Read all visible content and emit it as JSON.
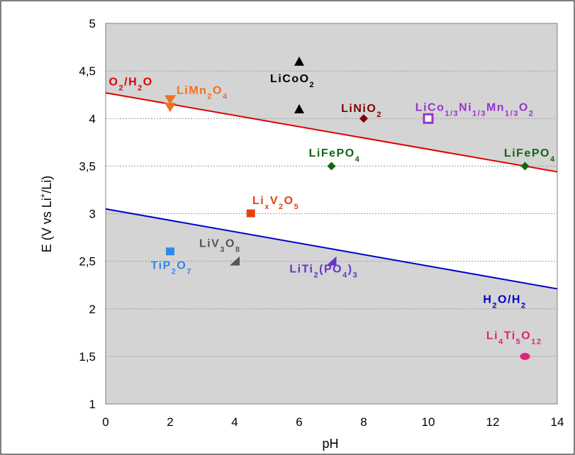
{
  "chart_data": {
    "type": "scatter",
    "xlabel": "pH",
    "ylabel": "E (V vs Li+/Li)",
    "ylabel_parts": {
      "pre": "E (V vs Li",
      "sup": "+",
      "post": "/Li)"
    },
    "xlim": [
      0,
      14
    ],
    "ylim": [
      1,
      5
    ],
    "x_ticks": [
      "0",
      "2",
      "4",
      "6",
      "8",
      "10",
      "12",
      "14"
    ],
    "y_ticks": [
      "1",
      "1,5",
      "2",
      "2,5",
      "3",
      "3,5",
      "4",
      "4,5",
      "5"
    ],
    "grid": "horizontal-dotted",
    "plot_background": "#d4d4d4",
    "lines": [
      {
        "name": "O2/H2O",
        "color": "#e00000",
        "x": [
          0,
          14
        ],
        "y": [
          4.27,
          3.44
        ]
      },
      {
        "name": "H2O/H2",
        "color": "#0000cc",
        "x": [
          0,
          14
        ],
        "y": [
          3.05,
          2.21
        ]
      }
    ],
    "points": [
      {
        "name": "LiCoO2",
        "marker": "triangle-up",
        "color": "#000000",
        "x": 6,
        "y": 4.6
      },
      {
        "name": "LiCoO2",
        "marker": "triangle-up",
        "color": "#000000",
        "x": 6,
        "y": 4.1
      },
      {
        "name": "LiMn2O4",
        "marker": "triangle-down",
        "color": "#f07020",
        "x": 2,
        "y": 4.2
      },
      {
        "name": "LiMn2O4",
        "marker": "triangle-down",
        "color": "#f07020",
        "x": 2,
        "y": 4.12
      },
      {
        "name": "LiNiO2",
        "marker": "diamond",
        "color": "#800000",
        "x": 8,
        "y": 4.0
      },
      {
        "name": "LiCo1/3Ni1/3Mn1/3O2",
        "marker": "square-open",
        "color": "#9933cc",
        "x": 10,
        "y": 4.0
      },
      {
        "name": "LiFePO4",
        "marker": "diamond",
        "color": "#116611",
        "x": 7,
        "y": 3.5
      },
      {
        "name": "LiFePO4",
        "marker": "diamond",
        "color": "#116611",
        "x": 13,
        "y": 3.5
      },
      {
        "name": "LixV2O5",
        "marker": "square",
        "color": "#e84010",
        "x": 4.5,
        "y": 3.0
      },
      {
        "name": "TiP2O7",
        "marker": "square",
        "color": "#3388ee",
        "x": 2,
        "y": 2.6
      },
      {
        "name": "LiV3O8",
        "marker": "triangle-right",
        "color": "#555555",
        "x": 4,
        "y": 2.5
      },
      {
        "name": "LiTi2(PO4)3",
        "marker": "triangle-right",
        "color": "#6633cc",
        "x": 7,
        "y": 2.5
      },
      {
        "name": "Li4Ti5O12",
        "marker": "circle",
        "color": "#e8207a",
        "x": 13,
        "y": 1.5
      }
    ],
    "labels": [
      {
        "id": "o2h2o",
        "color": "#e00000",
        "x": 0.1,
        "y": 4.35,
        "parts": [
          [
            "t",
            "O"
          ],
          [
            "s",
            "2"
          ],
          [
            "t",
            "/H"
          ],
          [
            "s",
            "2"
          ],
          [
            "t",
            "O"
          ]
        ]
      },
      {
        "id": "limn2o4",
        "color": "#f07020",
        "x": 2.2,
        "y": 4.26,
        "parts": [
          [
            "t",
            "LiMn"
          ],
          [
            "s",
            "2"
          ],
          [
            "t",
            "O"
          ],
          [
            "s",
            "4"
          ]
        ]
      },
      {
        "id": "licoo2",
        "color": "#000000",
        "x": 5.1,
        "y": 4.38,
        "parts": [
          [
            "t",
            "LiCoO"
          ],
          [
            "s",
            "2"
          ]
        ]
      },
      {
        "id": "linio2",
        "color": "#800000",
        "x": 7.3,
        "y": 4.07,
        "parts": [
          [
            "t",
            "LiNiO"
          ],
          [
            "s",
            "2"
          ]
        ]
      },
      {
        "id": "liconimno2",
        "color": "#9933cc",
        "x": 9.6,
        "y": 4.08,
        "parts": [
          [
            "t",
            "LiCo"
          ],
          [
            "s",
            "1/3"
          ],
          [
            "t",
            "Ni"
          ],
          [
            "s",
            "1/3"
          ],
          [
            "t",
            "Mn"
          ],
          [
            "s",
            "1/3"
          ],
          [
            "t",
            "O"
          ],
          [
            "s",
            "2"
          ]
        ]
      },
      {
        "id": "lifepo4a",
        "color": "#116611",
        "x": 6.3,
        "y": 3.6,
        "parts": [
          [
            "t",
            "LiFePO"
          ],
          [
            "s",
            "4"
          ]
        ]
      },
      {
        "id": "lifepo4b",
        "color": "#116611",
        "x": 12.35,
        "y": 3.6,
        "parts": [
          [
            "t",
            "LiFePO"
          ],
          [
            "s",
            "4"
          ]
        ]
      },
      {
        "id": "lixv2o5",
        "color": "#e84010",
        "x": 4.55,
        "y": 3.1,
        "parts": [
          [
            "t",
            "Li"
          ],
          [
            "s",
            "x"
          ],
          [
            "t",
            "V"
          ],
          [
            "s",
            "2"
          ],
          [
            "t",
            "O"
          ],
          [
            "s",
            "5"
          ]
        ]
      },
      {
        "id": "liv3o8",
        "color": "#555555",
        "x": 2.9,
        "y": 2.65,
        "parts": [
          [
            "t",
            "LiV"
          ],
          [
            "s",
            "3"
          ],
          [
            "t",
            "O"
          ],
          [
            "s",
            "8"
          ]
        ]
      },
      {
        "id": "tip2o7",
        "color": "#3388ee",
        "x": 1.4,
        "y": 2.42,
        "parts": [
          [
            "t",
            "TiP"
          ],
          [
            "s",
            "2"
          ],
          [
            "t",
            "O"
          ],
          [
            "s",
            "7"
          ]
        ]
      },
      {
        "id": "liti2po43",
        "color": "#6633cc",
        "x": 5.7,
        "y": 2.38,
        "parts": [
          [
            "t",
            "LiTi"
          ],
          [
            "s",
            "2"
          ],
          [
            "t",
            "(PO"
          ],
          [
            "s",
            "4"
          ],
          [
            "t",
            ")"
          ],
          [
            "s",
            "3"
          ]
        ]
      },
      {
        "id": "h2oh2",
        "color": "#0000cc",
        "x": 11.7,
        "y": 2.06,
        "parts": [
          [
            "t",
            "H"
          ],
          [
            "s",
            "2"
          ],
          [
            "t",
            "O/H"
          ],
          [
            "s",
            "2"
          ]
        ]
      },
      {
        "id": "li4ti5o12",
        "color": "#e8207a",
        "x": 11.8,
        "y": 1.68,
        "parts": [
          [
            "t",
            "Li"
          ],
          [
            "s",
            "4"
          ],
          [
            "t",
            "Ti"
          ],
          [
            "s",
            "5"
          ],
          [
            "t",
            "O"
          ],
          [
            "s",
            "12"
          ]
        ]
      }
    ]
  }
}
